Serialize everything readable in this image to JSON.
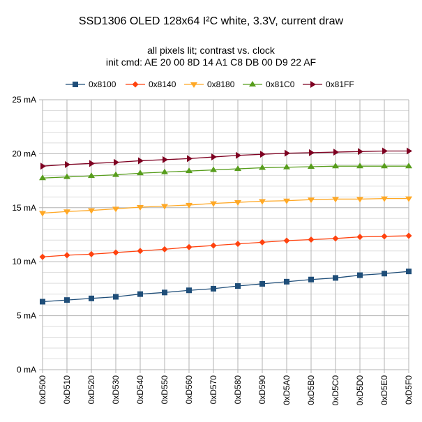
{
  "chart_data": {
    "type": "line",
    "title": "SSD1306 OLED 128x64 I²C white, 3.3V, current draw",
    "subtitle_lines": [
      "all pixels lit; contrast vs. clock",
      "init cmd: AE 20 00 8D 14 A1 C8 DB 00 D9 22 AF"
    ],
    "categories": [
      "0xD500",
      "0xD510",
      "0xD520",
      "0xD530",
      "0xD540",
      "0xD550",
      "0xD560",
      "0xD570",
      "0xD580",
      "0xD590",
      "0xD5A0",
      "0xD5B0",
      "0xD5C0",
      "0xD5D0",
      "0xD5E0",
      "0xD5F0"
    ],
    "y_ticks": [
      "0 mA",
      "5 mA",
      "10 mA",
      "15 mA",
      "20 mA",
      "25 mA"
    ],
    "ylim": [
      0,
      25
    ],
    "grid": true,
    "legend_position": "top",
    "series": [
      {
        "name": "0x8100",
        "color": "#1f4e79",
        "marker": "square",
        "values": [
          6.3,
          6.45,
          6.6,
          6.75,
          7.0,
          7.15,
          7.35,
          7.5,
          7.75,
          7.95,
          8.15,
          8.35,
          8.5,
          8.75,
          8.9,
          9.1
        ]
      },
      {
        "name": "0x8140",
        "color": "#ff420e",
        "marker": "diamond",
        "values": [
          10.45,
          10.6,
          10.7,
          10.85,
          11.0,
          11.15,
          11.35,
          11.5,
          11.65,
          11.8,
          11.95,
          12.05,
          12.15,
          12.3,
          12.35,
          12.4
        ]
      },
      {
        "name": "0x8180",
        "color": "#ffa825",
        "marker": "triangle-down",
        "values": [
          14.5,
          14.65,
          14.75,
          14.9,
          15.05,
          15.15,
          15.25,
          15.4,
          15.5,
          15.6,
          15.65,
          15.75,
          15.8,
          15.8,
          15.85,
          15.85
        ]
      },
      {
        "name": "0x81C0",
        "color": "#579d1c",
        "marker": "triangle-up",
        "values": [
          17.75,
          17.85,
          17.95,
          18.05,
          18.2,
          18.3,
          18.4,
          18.5,
          18.6,
          18.7,
          18.75,
          18.8,
          18.85,
          18.85,
          18.85,
          18.85
        ]
      },
      {
        "name": "0x81FF",
        "color": "#7e0021",
        "marker": "triangle-right",
        "values": [
          18.85,
          19.0,
          19.1,
          19.2,
          19.35,
          19.45,
          19.55,
          19.7,
          19.85,
          19.95,
          20.05,
          20.1,
          20.15,
          20.2,
          20.25,
          20.25
        ]
      }
    ]
  }
}
